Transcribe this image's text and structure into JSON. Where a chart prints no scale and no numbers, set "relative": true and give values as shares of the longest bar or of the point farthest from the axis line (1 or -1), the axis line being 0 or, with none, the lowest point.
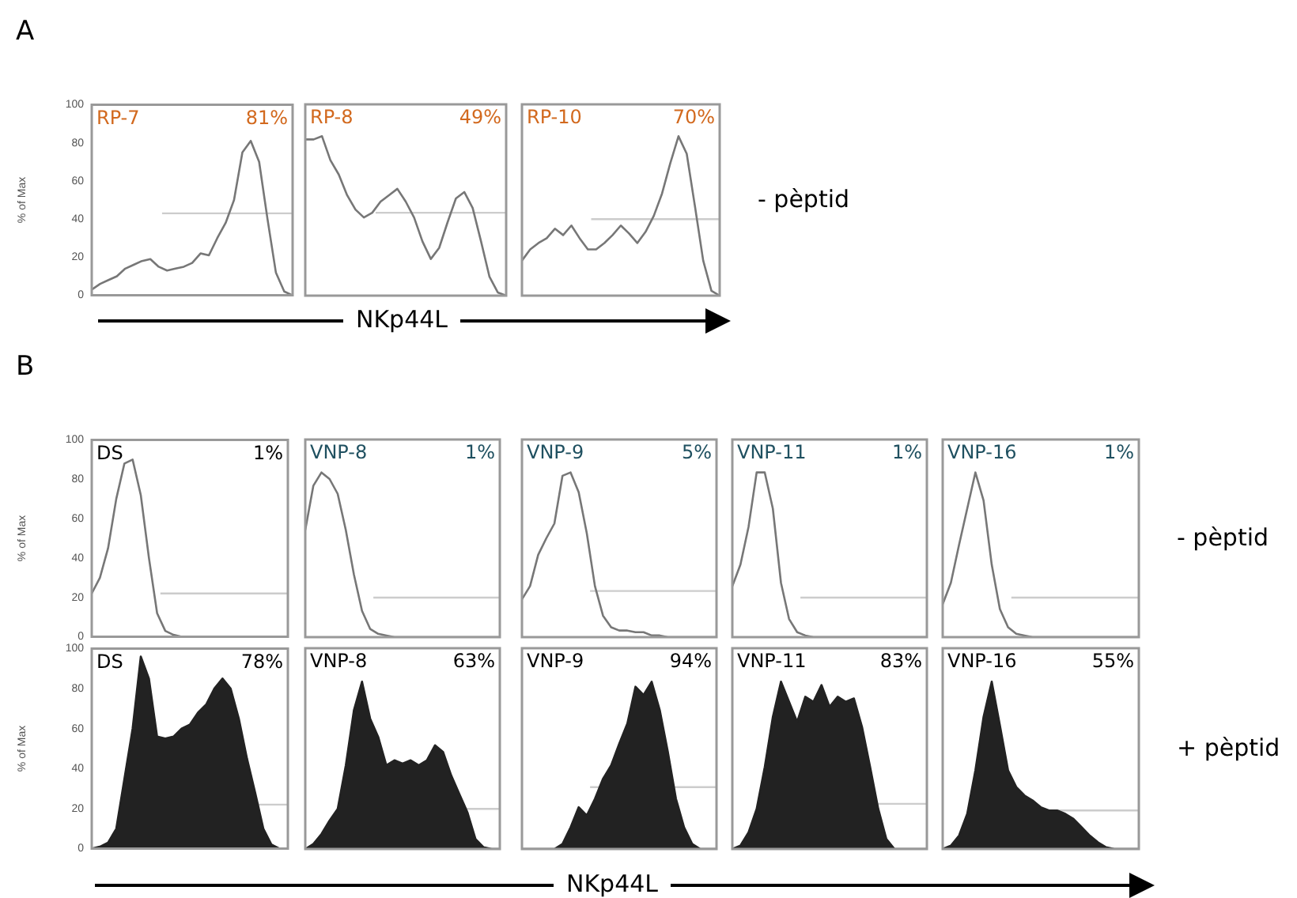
{
  "chart_data": [
    {
      "type": "line",
      "title": "A",
      "ylabel": "% of Max",
      "annotations": [
        "RP-7",
        "81%"
      ],
      "categories": [
        null,
        null,
        null,
        null,
        null,
        null,
        null,
        null,
        null,
        null,
        null,
        null,
        null,
        null,
        null,
        null,
        null,
        null,
        null,
        null,
        null,
        null,
        null,
        null,
        null
      ],
      "values": [
        3,
        6,
        8,
        10,
        14,
        16,
        18,
        19,
        15,
        13,
        14,
        15,
        17,
        22,
        21,
        30,
        38,
        50,
        75,
        81,
        70,
        40,
        12,
        2,
        0
      ],
      "color": "#777777",
      "ylim": [
        0,
        100
      ],
      "yticks": [
        0,
        20,
        40,
        60,
        80,
        100
      ],
      "ref_lines": [
        {
          "axis": "y",
          "value": 43,
          "color": "#cccccc"
        }
      ]
    },
    {
      "type": "line",
      "relative": true,
      "xlabel": "NKp44L",
      "annotations": [
        "RP-8",
        "49%"
      ],
      "categories": [
        null,
        null,
        null,
        null,
        null,
        null,
        null,
        null,
        null,
        null,
        null,
        null,
        null,
        null,
        null,
        null,
        null,
        null,
        null,
        null,
        null,
        null,
        null,
        null,
        null
      ],
      "values": [
        0.98,
        0.98,
        1,
        0.85,
        0.76,
        0.63,
        0.54,
        0.49,
        0.52,
        0.59,
        0.63,
        0.67,
        0.59,
        0.49,
        0.34,
        0.23,
        0.3,
        0.46,
        0.61,
        0.65,
        0.55,
        0.34,
        0.12,
        0.02,
        0
      ],
      "color": "#777777",
      "ref_lines": [
        {
          "axis": "y",
          "value": 0.52,
          "color": "#cccccc"
        }
      ]
    },
    {
      "type": "line",
      "relative": true,
      "annotations": [
        "RP-10",
        "70%",
        "- pèptid"
      ],
      "categories": [
        null,
        null,
        null,
        null,
        null,
        null,
        null,
        null,
        null,
        null,
        null,
        null,
        null,
        null,
        null,
        null,
        null,
        null,
        null,
        null,
        null,
        null,
        null,
        null,
        null
      ],
      "values": [
        0.22,
        0.29,
        0.33,
        0.36,
        0.42,
        0.38,
        0.44,
        0.36,
        0.29,
        0.29,
        0.33,
        0.38,
        0.44,
        0.39,
        0.33,
        0.4,
        0.5,
        0.64,
        0.83,
        1,
        0.89,
        0.56,
        0.22,
        0.03,
        0
      ],
      "color": "#777777",
      "ref_lines": [
        {
          "axis": "y",
          "value": 0.48,
          "color": "#cccccc"
        }
      ]
    },
    {
      "type": "line",
      "title": "B",
      "ylabel": "% of Max",
      "annotations": [
        "DS",
        "1%"
      ],
      "categories": [
        null,
        null,
        null,
        null,
        null,
        null,
        null,
        null,
        null,
        null,
        null,
        null,
        null,
        null,
        null,
        null,
        null,
        null,
        null,
        null,
        null,
        null,
        null,
        null,
        null
      ],
      "values": [
        22,
        30,
        45,
        70,
        88,
        90,
        72,
        40,
        12,
        3,
        1,
        0,
        0,
        0,
        0,
        0,
        0,
        0,
        0,
        0,
        0,
        0,
        0,
        0,
        0
      ],
      "color": "#777777",
      "ylim": [
        0,
        100
      ],
      "yticks": [
        0,
        20,
        40,
        60,
        80,
        100
      ],
      "ref_lines": [
        {
          "axis": "y",
          "value": 22,
          "color": "#cccccc"
        }
      ]
    },
    {
      "type": "line",
      "relative": true,
      "annotations": [
        "VNP-8",
        "1%"
      ],
      "categories": [
        null,
        null,
        null,
        null,
        null,
        null,
        null,
        null,
        null,
        null,
        null,
        null,
        null,
        null,
        null,
        null,
        null,
        null,
        null,
        null,
        null,
        null,
        null,
        null,
        null
      ],
      "values": [
        0.65,
        0.92,
        1,
        0.96,
        0.87,
        0.65,
        0.38,
        0.16,
        0.05,
        0.02,
        0.01,
        0,
        0,
        0,
        0,
        0,
        0,
        0,
        0,
        0,
        0,
        0,
        0,
        0,
        0
      ],
      "color": "#777777",
      "ref_lines": [
        {
          "axis": "y",
          "value": 0.24,
          "color": "#cccccc"
        }
      ]
    },
    {
      "type": "line",
      "relative": true,
      "annotations": [
        "VNP-9",
        "5%"
      ],
      "categories": [
        null,
        null,
        null,
        null,
        null,
        null,
        null,
        null,
        null,
        null,
        null,
        null,
        null,
        null,
        null,
        null,
        null,
        null,
        null,
        null,
        null,
        null,
        null,
        null,
        null
      ],
      "values": [
        0.23,
        0.31,
        0.5,
        0.6,
        0.69,
        0.98,
        1,
        0.88,
        0.63,
        0.31,
        0.13,
        0.06,
        0.04,
        0.04,
        0.03,
        0.03,
        0.01,
        0.01,
        0,
        0,
        0,
        0,
        0,
        0,
        0
      ],
      "color": "#777777",
      "ref_lines": [
        {
          "axis": "y",
          "value": 0.28,
          "color": "#cccccc"
        }
      ]
    },
    {
      "type": "line",
      "relative": true,
      "annotations": [
        "VNP-11",
        "1%"
      ],
      "categories": [
        null,
        null,
        null,
        null,
        null,
        null,
        null,
        null,
        null,
        null,
        null,
        null,
        null,
        null,
        null,
        null,
        null,
        null,
        null,
        null,
        null,
        null,
        null,
        null,
        null
      ],
      "values": [
        0.31,
        0.44,
        0.67,
        1,
        1,
        0.78,
        0.33,
        0.11,
        0.03,
        0.01,
        0,
        0,
        0,
        0,
        0,
        0,
        0,
        0,
        0,
        0,
        0,
        0,
        0,
        0,
        0
      ],
      "color": "#777777",
      "ref_lines": [
        {
          "axis": "y",
          "value": 0.24,
          "color": "#cccccc"
        }
      ]
    },
    {
      "type": "line",
      "relative": true,
      "annotations": [
        "VNP-16",
        "1%",
        "- pèptid"
      ],
      "categories": [
        null,
        null,
        null,
        null,
        null,
        null,
        null,
        null,
        null,
        null,
        null,
        null,
        null,
        null,
        null,
        null,
        null,
        null,
        null,
        null,
        null,
        null,
        null,
        null,
        null
      ],
      "values": [
        0.2,
        0.33,
        0.56,
        0.78,
        1,
        0.83,
        0.44,
        0.17,
        0.06,
        0.02,
        0.01,
        0,
        0,
        0,
        0,
        0,
        0,
        0,
        0,
        0,
        0,
        0,
        0,
        0,
        0
      ],
      "color": "#777777",
      "ref_lines": [
        {
          "axis": "y",
          "value": 0.24,
          "color": "#cccccc"
        }
      ]
    },
    {
      "type": "area",
      "ylabel": "% of Max",
      "annotations": [
        "DS",
        "78%"
      ],
      "categories": [
        null,
        null,
        null,
        null,
        null,
        null,
        null,
        null,
        null,
        null,
        null,
        null,
        null,
        null,
        null,
        null,
        null,
        null,
        null,
        null,
        null,
        null,
        null,
        null,
        null
      ],
      "values": [
        0,
        1,
        3,
        10,
        35,
        60,
        96,
        85,
        56,
        55,
        56,
        60,
        62,
        68,
        72,
        80,
        85,
        80,
        65,
        45,
        28,
        10,
        2,
        0,
        0
      ],
      "color": "#222222",
      "ylim": [
        0,
        100
      ],
      "yticks": [
        0,
        20,
        40,
        60,
        80,
        100
      ],
      "ref_lines": [
        {
          "axis": "y",
          "value": 22,
          "color": "#cccccc"
        }
      ]
    },
    {
      "type": "area",
      "relative": true,
      "annotations": [
        "VNP-8",
        "63%"
      ],
      "categories": [
        null,
        null,
        null,
        null,
        null,
        null,
        null,
        null,
        null,
        null,
        null,
        null,
        null,
        null,
        null,
        null,
        null,
        null,
        null,
        null,
        null,
        null,
        null,
        null,
        null
      ],
      "values": [
        0,
        0.03,
        0.09,
        0.17,
        0.24,
        0.5,
        0.83,
        1,
        0.78,
        0.67,
        0.5,
        0.53,
        0.51,
        0.53,
        0.5,
        0.53,
        0.62,
        0.58,
        0.44,
        0.33,
        0.22,
        0.06,
        0.01,
        0,
        0
      ],
      "color": "#222222",
      "ref_lines": [
        {
          "axis": "y",
          "value": 0.24,
          "color": "#cccccc"
        }
      ]
    },
    {
      "type": "area",
      "relative": true,
      "xlabel": "NKp44L",
      "annotations": [
        "VNP-9",
        "94%"
      ],
      "categories": [
        null,
        null,
        null,
        null,
        null,
        null,
        null,
        null,
        null,
        null,
        null,
        null,
        null,
        null,
        null,
        null,
        null,
        null,
        null,
        null,
        null,
        null,
        null,
        null,
        null
      ],
      "values": [
        0,
        0,
        0,
        0,
        0,
        0.03,
        0.13,
        0.25,
        0.2,
        0.3,
        0.42,
        0.5,
        0.63,
        0.75,
        0.97,
        0.92,
        1,
        0.83,
        0.58,
        0.3,
        0.13,
        0.03,
        0,
        0,
        0
      ],
      "color": "#222222",
      "ref_lines": [
        {
          "axis": "y",
          "value": 0.37,
          "color": "#cccccc"
        }
      ]
    },
    {
      "type": "area",
      "relative": true,
      "annotations": [
        "VNP-11",
        "83%"
      ],
      "categories": [
        null,
        null,
        null,
        null,
        null,
        null,
        null,
        null,
        null,
        null,
        null,
        null,
        null,
        null,
        null,
        null,
        null,
        null,
        null,
        null,
        null,
        null,
        null,
        null,
        null
      ],
      "values": [
        0,
        0.02,
        0.1,
        0.24,
        0.49,
        0.79,
        1,
        0.88,
        0.76,
        0.91,
        0.88,
        0.98,
        0.85,
        0.91,
        0.88,
        0.9,
        0.73,
        0.49,
        0.24,
        0.06,
        0,
        0,
        0,
        0,
        0
      ],
      "color": "#222222",
      "ref_lines": [
        {
          "axis": "y",
          "value": 0.27,
          "color": "#cccccc"
        }
      ]
    },
    {
      "type": "area",
      "relative": true,
      "annotations": [
        "VNP-16",
        "55%",
        "+ pèptid"
      ],
      "categories": [
        null,
        null,
        null,
        null,
        null,
        null,
        null,
        null,
        null,
        null,
        null,
        null,
        null,
        null,
        null,
        null,
        null,
        null,
        null,
        null,
        null,
        null,
        null,
        null,
        null
      ],
      "values": [
        0,
        0.02,
        0.08,
        0.21,
        0.47,
        0.79,
        1,
        0.74,
        0.47,
        0.37,
        0.32,
        0.29,
        0.25,
        0.23,
        0.23,
        0.21,
        0.18,
        0.13,
        0.08,
        0.04,
        0.01,
        0,
        0,
        0,
        0
      ],
      "color": "#222222",
      "ref_lines": [
        {
          "axis": "y",
          "value": 0.23,
          "color": "#cccccc"
        }
      ]
    }
  ]
}
